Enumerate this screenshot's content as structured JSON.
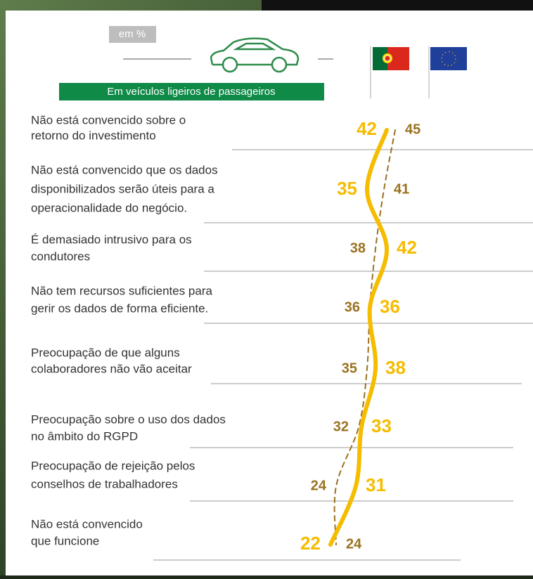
{
  "chart_data": {
    "type": "line",
    "orientation": "horizontal",
    "badge": "em %",
    "subtitle": "Em veículos ligeiros de passageiros",
    "categories": [
      [
        "Não está convencido sobre o",
        "retorno do investimento"
      ],
      [
        "Não está convencido que os dados",
        "disponibilizados serão úteis para a",
        "operacionalidade do negócio."
      ],
      [
        "É demasiado intrusivo para os",
        "condutores"
      ],
      [
        "Não tem recursos suficientes para",
        "gerir os dados de forma eficiente."
      ],
      [
        "Preocupação de que alguns",
        "colaboradores não vão aceitar"
      ],
      [
        "Preocupação sobre o uso dos dados",
        "no âmbito do RGPD"
      ],
      [
        "Preocupação de rejeição pelos",
        "conselhos de trabalhadores"
      ],
      [
        "Não está convencido",
        "que funcione"
      ]
    ],
    "series": [
      {
        "color": "#f5bc00",
        "style": "solid",
        "values": [
          42,
          35,
          42,
          36,
          38,
          33,
          31,
          22
        ]
      },
      {
        "color": "#9a7220",
        "style": "dashed",
        "values": [
          45,
          41,
          38,
          36,
          35,
          32,
          24,
          24
        ]
      }
    ]
  }
}
